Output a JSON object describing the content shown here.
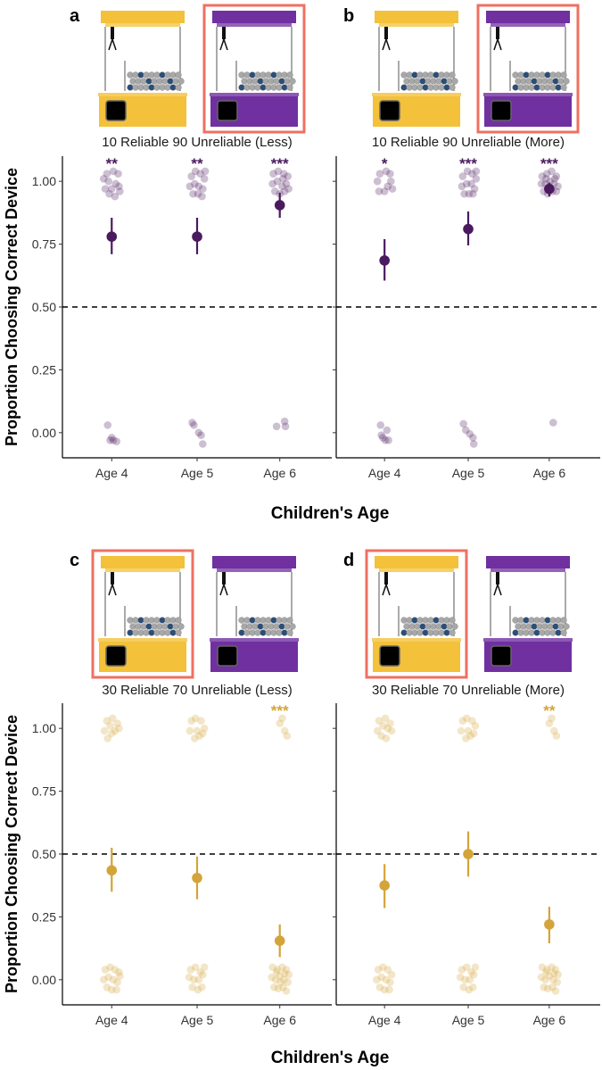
{
  "chart_data": [
    {
      "panel": "a",
      "type": "scatter",
      "title": "10 Reliable 90 Unreliable (Less)",
      "color": "#4a1a5e",
      "highlighted_machine": "right",
      "xlabel": "Children's Age",
      "ylabel": "Proportion Choosing Correct Device",
      "categories": [
        "Age 4",
        "Age 5",
        "Age 6"
      ],
      "ylim": [
        -0.1,
        1.1
      ],
      "yticks": [
        "0.00",
        "0.25",
        "0.50",
        "0.75",
        "1.00"
      ],
      "reference_line": 0.5,
      "means": [
        0.78,
        0.78,
        0.905
      ],
      "ci_low": [
        0.71,
        0.71,
        0.855
      ],
      "ci_high": [
        0.855,
        0.855,
        0.955
      ],
      "significance": [
        "**",
        "**",
        "***"
      ],
      "raw_points": [
        [
          [
            -0.06,
            1.03
          ],
          [
            0.02,
            1.04
          ],
          [
            0.08,
            1.03
          ],
          [
            -0.04,
            1.0
          ],
          [
            0.05,
            0.99
          ],
          [
            -0.08,
            0.97
          ],
          [
            0.0,
            0.97
          ],
          [
            0.09,
            0.98
          ],
          [
            -0.03,
            0.95
          ],
          [
            0.04,
            0.94
          ],
          [
            0.1,
            0.96
          ],
          [
            -0.1,
            1.01
          ],
          [
            -0.05,
            0.03
          ],
          [
            -0.02,
            -0.03
          ],
          [
            0.02,
            -0.03
          ],
          [
            0.06,
            -0.035
          ],
          [
            0.0,
            -0.02
          ]
        ],
        [
          [
            -0.07,
            1.02
          ],
          [
            -0.02,
            1.04
          ],
          [
            0.04,
            1.03
          ],
          [
            0.09,
            1.01
          ],
          [
            -0.09,
            0.98
          ],
          [
            -0.03,
            0.99
          ],
          [
            0.02,
            0.98
          ],
          [
            0.07,
            0.97
          ],
          [
            -0.05,
            0.95
          ],
          [
            0.01,
            0.95
          ],
          [
            0.06,
            0.94
          ],
          [
            0.1,
            1.04
          ],
          [
            -0.06,
            0.04
          ],
          [
            -0.04,
            0.03
          ],
          [
            0.02,
            0.0
          ],
          [
            0.05,
            -0.01
          ],
          [
            0.07,
            -0.045
          ]
        ],
        [
          [
            -0.08,
            1.03
          ],
          [
            -0.02,
            1.04
          ],
          [
            0.05,
            1.03
          ],
          [
            0.1,
            1.02
          ],
          [
            -0.09,
            0.99
          ],
          [
            -0.03,
            1.0
          ],
          [
            0.03,
            0.98
          ],
          [
            0.08,
            0.99
          ],
          [
            -0.06,
            0.96
          ],
          [
            0.0,
            0.95
          ],
          [
            0.06,
            0.96
          ],
          [
            0.11,
            0.97
          ],
          [
            0.04,
            1.01
          ],
          [
            -0.04,
            0.025
          ],
          [
            0.06,
            0.045
          ],
          [
            0.07,
            0.025
          ]
        ]
      ]
    },
    {
      "panel": "b",
      "type": "scatter",
      "title": "10 Reliable 90 Unreliable (More)",
      "color": "#4a1a5e",
      "highlighted_machine": "right",
      "xlabel": "Children's Age",
      "ylabel": "Proportion Choosing Correct Device",
      "categories": [
        "Age 4",
        "Age 5",
        "Age 6"
      ],
      "ylim": [
        -0.1,
        1.1
      ],
      "yticks": [
        "0.00",
        "0.25",
        "0.50",
        "0.75",
        "1.00"
      ],
      "reference_line": 0.5,
      "means": [
        0.685,
        0.81,
        0.97
      ],
      "ci_low": [
        0.605,
        0.745,
        0.94
      ],
      "ci_high": [
        0.77,
        0.88,
        0.995
      ],
      "significance": [
        "*",
        "***",
        "***"
      ],
      "raw_points": [
        [
          [
            -0.06,
            1.03
          ],
          [
            0.02,
            1.04
          ],
          [
            0.07,
            1.03
          ],
          [
            -0.09,
            1.0
          ],
          [
            0.08,
            1.0
          ],
          [
            -0.07,
            0.96
          ],
          [
            0.04,
            0.98
          ],
          [
            0.0,
            0.96
          ],
          [
            0.1,
            0.97
          ],
          [
            -0.05,
            0.03
          ],
          [
            0.03,
            0.01
          ],
          [
            -0.02,
            -0.02
          ],
          [
            0.01,
            -0.03
          ],
          [
            0.05,
            -0.03
          ],
          [
            -0.04,
            -0.01
          ]
        ],
        [
          [
            -0.07,
            1.02
          ],
          [
            -0.01,
            1.04
          ],
          [
            0.05,
            1.03
          ],
          [
            0.1,
            1.01
          ],
          [
            -0.08,
            0.98
          ],
          [
            -0.02,
            0.99
          ],
          [
            0.04,
            0.99
          ],
          [
            0.08,
            0.97
          ],
          [
            -0.05,
            0.95
          ],
          [
            0.01,
            0.95
          ],
          [
            0.06,
            0.95
          ],
          [
            0.1,
            1.04
          ],
          [
            -0.06,
            0.035
          ],
          [
            -0.03,
            0.01
          ],
          [
            0.02,
            -0.005
          ],
          [
            0.06,
            -0.02
          ],
          [
            0.07,
            -0.045
          ]
        ],
        [
          [
            -0.09,
            1.02
          ],
          [
            -0.03,
            1.03
          ],
          [
            0.03,
            1.04
          ],
          [
            0.09,
            1.02
          ],
          [
            -0.1,
            0.99
          ],
          [
            -0.05,
            0.99
          ],
          [
            0.01,
            1.0
          ],
          [
            0.06,
            0.99
          ],
          [
            0.11,
            0.98
          ],
          [
            -0.07,
            0.96
          ],
          [
            -0.02,
            0.95
          ],
          [
            0.04,
            0.96
          ],
          [
            0.09,
            0.96
          ],
          [
            -0.04,
            1.01
          ],
          [
            0.07,
            1.01
          ],
          [
            0.05,
            0.04
          ]
        ]
      ]
    },
    {
      "panel": "c",
      "type": "scatter",
      "title": "30 Reliable 70 Unreliable (Less)",
      "color": "#d4a43a",
      "highlighted_machine": "left",
      "xlabel": "Children's Age",
      "ylabel": "Proportion Choosing Correct Device",
      "categories": [
        "Age 4",
        "Age 5",
        "Age 6"
      ],
      "ylim": [
        -0.1,
        1.1
      ],
      "yticks": [
        "0.00",
        "0.25",
        "0.50",
        "0.75",
        "1.00"
      ],
      "reference_line": 0.5,
      "means": [
        0.435,
        0.405,
        0.155
      ],
      "ci_low": [
        0.35,
        0.32,
        0.09
      ],
      "ci_high": [
        0.525,
        0.49,
        0.22
      ],
      "significance": [
        "",
        "",
        "***"
      ],
      "raw_points": [
        [
          [
            -0.06,
            1.03
          ],
          [
            0.01,
            1.04
          ],
          [
            0.07,
            1.02
          ],
          [
            -0.09,
            0.99
          ],
          [
            0.04,
            0.99
          ],
          [
            -0.05,
            0.96
          ],
          [
            0.0,
            0.98
          ],
          [
            0.09,
            1.0
          ],
          [
            -0.02,
            1.01
          ],
          [
            -0.08,
            0.04
          ],
          [
            -0.02,
            0.05
          ],
          [
            0.04,
            0.04
          ],
          [
            0.09,
            0.03
          ],
          [
            -0.1,
            0.0
          ],
          [
            -0.04,
            0.01
          ],
          [
            0.02,
            0.0
          ],
          [
            0.07,
            -0.01
          ],
          [
            -0.06,
            -0.03
          ],
          [
            0.0,
            -0.04
          ],
          [
            0.06,
            -0.04
          ],
          [
            0.1,
            0.015
          ]
        ],
        [
          [
            -0.07,
            1.03
          ],
          [
            -0.02,
            1.04
          ],
          [
            0.05,
            1.03
          ],
          [
            -0.09,
            0.99
          ],
          [
            0.0,
            0.99
          ],
          [
            0.07,
            0.98
          ],
          [
            -0.03,
            0.96
          ],
          [
            0.03,
            0.97
          ],
          [
            0.09,
            1.0
          ],
          [
            -0.08,
            0.04
          ],
          [
            -0.02,
            0.05
          ],
          [
            0.04,
            0.03
          ],
          [
            0.09,
            0.05
          ],
          [
            -0.1,
            0.01
          ],
          [
            -0.04,
            0.0
          ],
          [
            0.02,
            0.0
          ],
          [
            0.07,
            0.02
          ],
          [
            -0.06,
            -0.03
          ],
          [
            0.01,
            -0.04
          ],
          [
            0.06,
            -0.03
          ]
        ],
        [
          [
            0.03,
            1.04
          ],
          [
            0.0,
            1.02
          ],
          [
            0.06,
            0.99
          ],
          [
            0.09,
            0.97
          ],
          [
            -0.09,
            0.05
          ],
          [
            -0.03,
            0.04
          ],
          [
            0.03,
            0.05
          ],
          [
            0.08,
            0.04
          ],
          [
            0.11,
            0.02
          ],
          [
            -0.1,
            0.01
          ],
          [
            -0.05,
            0.0
          ],
          [
            0.0,
            0.015
          ],
          [
            0.05,
            0.0
          ],
          [
            0.1,
            -0.01
          ],
          [
            -0.07,
            -0.03
          ],
          [
            -0.02,
            -0.035
          ],
          [
            0.04,
            -0.03
          ],
          [
            0.08,
            -0.045
          ],
          [
            -0.04,
            0.03
          ],
          [
            0.06,
            0.025
          ],
          [
            0.01,
            -0.01
          ]
        ]
      ]
    },
    {
      "panel": "d",
      "type": "scatter",
      "title": "30 Reliable 70 Unreliable (More)",
      "color": "#d4a43a",
      "highlighted_machine": "left",
      "xlabel": "Children's Age",
      "ylabel": "Proportion Choosing Correct Device",
      "categories": [
        "Age 4",
        "Age 5",
        "Age 6"
      ],
      "ylim": [
        -0.1,
        1.1
      ],
      "yticks": [
        "0.00",
        "0.25",
        "0.50",
        "0.75",
        "1.00"
      ],
      "reference_line": 0.5,
      "means": [
        0.375,
        0.5,
        0.22
      ],
      "ci_low": [
        0.285,
        0.41,
        0.145
      ],
      "ci_high": [
        0.46,
        0.59,
        0.29
      ],
      "significance": [
        "",
        "",
        "**"
      ],
      "raw_points": [
        [
          [
            -0.07,
            1.03
          ],
          [
            0.01,
            1.04
          ],
          [
            0.07,
            1.02
          ],
          [
            -0.09,
            0.99
          ],
          [
            0.04,
            1.0
          ],
          [
            -0.04,
            0.97
          ],
          [
            0.02,
            0.96
          ],
          [
            0.09,
            0.99
          ],
          [
            -0.02,
            1.01
          ],
          [
            -0.08,
            0.04
          ],
          [
            -0.02,
            0.05
          ],
          [
            0.04,
            0.04
          ],
          [
            0.09,
            0.02
          ],
          [
            -0.1,
            0.0
          ],
          [
            -0.04,
            0.01
          ],
          [
            0.02,
            0.0
          ],
          [
            0.07,
            -0.01
          ],
          [
            -0.06,
            -0.03
          ],
          [
            0.0,
            -0.04
          ],
          [
            0.06,
            -0.04
          ]
        ],
        [
          [
            -0.07,
            1.03
          ],
          [
            -0.02,
            1.04
          ],
          [
            0.05,
            1.03
          ],
          [
            -0.09,
            0.99
          ],
          [
            0.0,
            0.99
          ],
          [
            0.07,
            0.98
          ],
          [
            -0.03,
            0.96
          ],
          [
            0.03,
            0.97
          ],
          [
            0.09,
            1.01
          ],
          [
            -0.08,
            0.04
          ],
          [
            -0.02,
            0.05
          ],
          [
            0.04,
            0.03
          ],
          [
            0.09,
            0.05
          ],
          [
            -0.1,
            0.01
          ],
          [
            -0.04,
            0.0
          ],
          [
            0.02,
            0.0
          ],
          [
            0.07,
            0.02
          ],
          [
            -0.06,
            -0.03
          ],
          [
            0.01,
            -0.04
          ],
          [
            0.06,
            -0.03
          ]
        ],
        [
          [
            0.03,
            1.04
          ],
          [
            0.0,
            1.02
          ],
          [
            0.06,
            0.99
          ],
          [
            0.09,
            0.97
          ],
          [
            -0.09,
            0.05
          ],
          [
            -0.03,
            0.04
          ],
          [
            0.03,
            0.05
          ],
          [
            0.08,
            0.04
          ],
          [
            0.11,
            0.02
          ],
          [
            -0.1,
            0.01
          ],
          [
            -0.05,
            0.0
          ],
          [
            0.0,
            0.015
          ],
          [
            0.05,
            0.0
          ],
          [
            0.1,
            -0.01
          ],
          [
            -0.07,
            -0.03
          ],
          [
            -0.02,
            -0.035
          ],
          [
            0.04,
            -0.03
          ],
          [
            0.08,
            -0.045
          ],
          [
            -0.04,
            0.03
          ],
          [
            0.06,
            0.025
          ]
        ]
      ]
    }
  ],
  "figure": {
    "xlabel_top": "Children's Age",
    "xlabel_bottom": "Children's Age",
    "ylabel_top": "Proportion Choosing Correct Device",
    "ylabel_bottom": "Proportion Choosing Correct Device",
    "colors": {
      "machine_yellow": "#f3c13a",
      "machine_purple": "#7030a0",
      "highlight": "#ef7060",
      "reference_line": "#000000"
    }
  }
}
